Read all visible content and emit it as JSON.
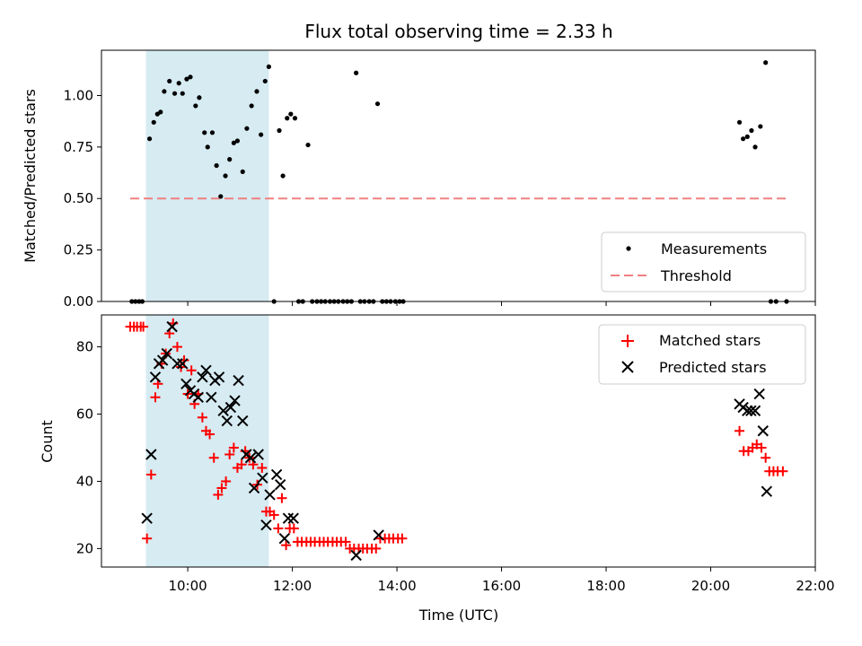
{
  "chart_data": [
    {
      "type": "scatter",
      "title": "Flux total observing time = 2.33 h",
      "ylabel": "Matched/Predicted stars",
      "xlabel": "",
      "xlim": [
        8.35,
        22.0
      ],
      "ylim": [
        0.0,
        1.22
      ],
      "x_ticks": [
        10,
        12,
        14,
        16,
        18,
        20,
        22
      ],
      "y_ticks": [
        0.0,
        0.25,
        0.5,
        0.75,
        1.0
      ],
      "y_tick_labels": [
        "0.00",
        "0.25",
        "0.50",
        "0.75",
        "1.00"
      ],
      "shaded_span": {
        "x_start": 9.2,
        "x_end": 11.55,
        "color": "#add8e6"
      },
      "threshold": {
        "name": "Threshold",
        "value": 0.5,
        "x_start": 8.9,
        "x_end": 21.45,
        "color": "#f08080"
      },
      "legend": {
        "position": "lower right",
        "entries": [
          "Measurements",
          "Threshold"
        ]
      },
      "series": [
        {
          "name": "Measurements",
          "marker": "dot",
          "color": "#000000",
          "x": [
            8.93,
            9.0,
            9.07,
            9.13,
            9.27,
            9.35,
            9.42,
            9.48,
            9.55,
            9.65,
            9.75,
            9.83,
            9.9,
            9.98,
            10.05,
            10.15,
            10.22,
            10.32,
            10.38,
            10.47,
            10.55,
            10.63,
            10.72,
            10.8,
            10.88,
            10.95,
            11.05,
            11.13,
            11.22,
            11.32,
            11.4,
            11.48,
            11.55,
            11.65,
            11.75,
            11.82,
            11.9,
            11.97,
            12.05,
            12.12,
            12.2,
            12.3,
            12.38,
            12.47,
            12.55,
            12.63,
            12.72,
            12.8,
            12.88,
            12.97,
            13.05,
            13.13,
            13.22,
            13.3,
            13.38,
            13.47,
            13.55,
            13.63,
            13.72,
            13.8,
            13.88,
            13.97,
            14.05,
            14.12,
            20.55,
            20.62,
            20.7,
            20.78,
            20.85,
            20.95,
            21.05,
            21.15,
            21.25,
            21.45
          ],
          "y": [
            0.0,
            0.0,
            0.0,
            0.0,
            0.79,
            0.87,
            0.91,
            0.92,
            1.02,
            1.07,
            1.01,
            1.06,
            1.01,
            1.08,
            1.09,
            0.95,
            0.99,
            0.82,
            0.75,
            0.82,
            0.66,
            0.51,
            0.61,
            0.69,
            0.77,
            0.78,
            0.63,
            0.84,
            0.95,
            1.02,
            0.81,
            1.07,
            1.14,
            0.0,
            0.83,
            0.61,
            0.89,
            0.91,
            0.89,
            0.0,
            0.0,
            0.76,
            0.0,
            0.0,
            0.0,
            0.0,
            0.0,
            0.0,
            0.0,
            0.0,
            0.0,
            0.0,
            1.11,
            0.0,
            0.0,
            0.0,
            0.0,
            0.96,
            0.0,
            0.0,
            0.0,
            0.0,
            0.0,
            0.0,
            0.87,
            0.79,
            0.8,
            0.83,
            0.75,
            0.85,
            1.16,
            0.0,
            0.0,
            0.0
          ]
        }
      ]
    },
    {
      "type": "scatter",
      "title": "",
      "ylabel": "Count",
      "xlabel": "Time (UTC)",
      "xlim": [
        8.35,
        22.0
      ],
      "ylim": [
        14.5,
        89.5
      ],
      "x_ticks": [
        10,
        12,
        14,
        16,
        18,
        20,
        22
      ],
      "x_tick_labels": [
        "10:00",
        "12:00",
        "14:00",
        "16:00",
        "18:00",
        "20:00",
        "22:00"
      ],
      "y_ticks": [
        20,
        40,
        60,
        80
      ],
      "y_tick_labels": [
        "20",
        "40",
        "60",
        "80"
      ],
      "shaded_span": {
        "x_start": 9.2,
        "x_end": 11.55,
        "color": "#add8e6"
      },
      "legend": {
        "position": "upper right",
        "entries": [
          "Matched stars",
          "Predicted stars"
        ]
      },
      "series": [
        {
          "name": "Matched stars",
          "marker": "plus",
          "color": "#ff0000",
          "x": [
            8.9,
            8.97,
            9.03,
            9.1,
            9.15,
            9.22,
            9.3,
            9.38,
            9.43,
            9.5,
            9.58,
            9.65,
            9.72,
            9.8,
            9.87,
            9.93,
            10.0,
            10.07,
            10.13,
            10.2,
            10.28,
            10.35,
            10.42,
            10.5,
            10.58,
            10.65,
            10.73,
            10.8,
            10.88,
            10.95,
            11.03,
            11.1,
            11.18,
            11.25,
            11.33,
            11.42,
            11.5,
            11.57,
            11.65,
            11.73,
            11.8,
            11.88,
            11.95,
            12.03,
            12.1,
            12.18,
            12.27,
            12.35,
            12.43,
            12.52,
            12.6,
            12.68,
            12.77,
            12.85,
            12.93,
            13.02,
            13.1,
            13.18,
            13.27,
            13.35,
            13.43,
            13.52,
            13.6,
            13.68,
            13.77,
            13.85,
            13.93,
            14.02,
            14.1,
            20.55,
            20.63,
            20.72,
            20.8,
            20.88,
            20.97,
            21.05,
            21.12,
            21.2,
            21.28,
            21.38
          ],
          "y": [
            86,
            86,
            86,
            86,
            86,
            23,
            42,
            65,
            69,
            75,
            78,
            84,
            87,
            80,
            74,
            76,
            66,
            73,
            63,
            66,
            59,
            55,
            54,
            47,
            36,
            38,
            40,
            48,
            50,
            44,
            45,
            49,
            47,
            45,
            39,
            44,
            31,
            31,
            30,
            26,
            35,
            21,
            26,
            26,
            22,
            22,
            22,
            22,
            22,
            22,
            22,
            22,
            22,
            22,
            22,
            22,
            20,
            20,
            20,
            20,
            20,
            20,
            20,
            23,
            23,
            23,
            23,
            23,
            23,
            55,
            49,
            49,
            50,
            51,
            50,
            47,
            43,
            43,
            43,
            43
          ]
        },
        {
          "name": "Predicted stars",
          "marker": "x",
          "color": "#000000",
          "x": [
            9.22,
            9.3,
            9.38,
            9.45,
            9.52,
            9.6,
            9.7,
            9.8,
            9.9,
            9.97,
            10.05,
            10.12,
            10.2,
            10.28,
            10.35,
            10.45,
            10.52,
            10.6,
            10.68,
            10.75,
            10.82,
            10.9,
            10.97,
            11.05,
            11.12,
            11.2,
            11.27,
            11.35,
            11.43,
            11.5,
            11.57,
            11.7,
            11.77,
            11.85,
            11.92,
            12.02,
            13.22,
            13.65,
            20.55,
            20.62,
            20.7,
            20.77,
            20.85,
            20.93,
            21.0,
            21.07
          ],
          "y": [
            29,
            48,
            71,
            75,
            76,
            78,
            86,
            75,
            75,
            69,
            67,
            66,
            65,
            71,
            73,
            65,
            70,
            71,
            61,
            58,
            62,
            64,
            70,
            58,
            48,
            47,
            38,
            48,
            41,
            27,
            36,
            42,
            39,
            23,
            29,
            29,
            18,
            24,
            63,
            62,
            61,
            61,
            61,
            66,
            55,
            37
          ]
        }
      ]
    }
  ]
}
